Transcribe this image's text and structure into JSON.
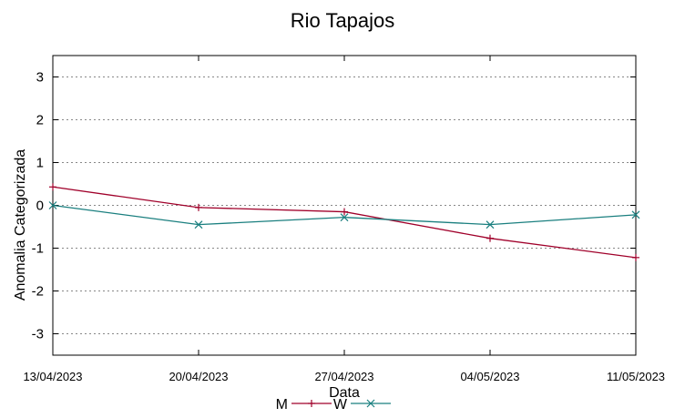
{
  "chart_data": {
    "type": "line",
    "title": "Rio Tapajos",
    "xlabel": "Data",
    "ylabel": "Anomalia Categorizada",
    "categories": [
      "13/04/2023",
      "20/04/2023",
      "27/04/2023",
      "04/05/2023",
      "11/05/2023"
    ],
    "ylim": [
      -3.5,
      3.5
    ],
    "yticks": [
      3,
      2,
      1,
      0,
      -1,
      -2,
      -3
    ],
    "grid": true,
    "legend_position": "bottom",
    "series": [
      {
        "name": "M",
        "color": "#a0002a",
        "marker": "plus",
        "values": [
          0.43,
          -0.05,
          -0.15,
          -0.77,
          -1.22
        ]
      },
      {
        "name": "W",
        "color": "#1a7f7f",
        "marker": "x",
        "values": [
          0.0,
          -0.45,
          -0.28,
          -0.45,
          -0.22
        ]
      }
    ]
  }
}
